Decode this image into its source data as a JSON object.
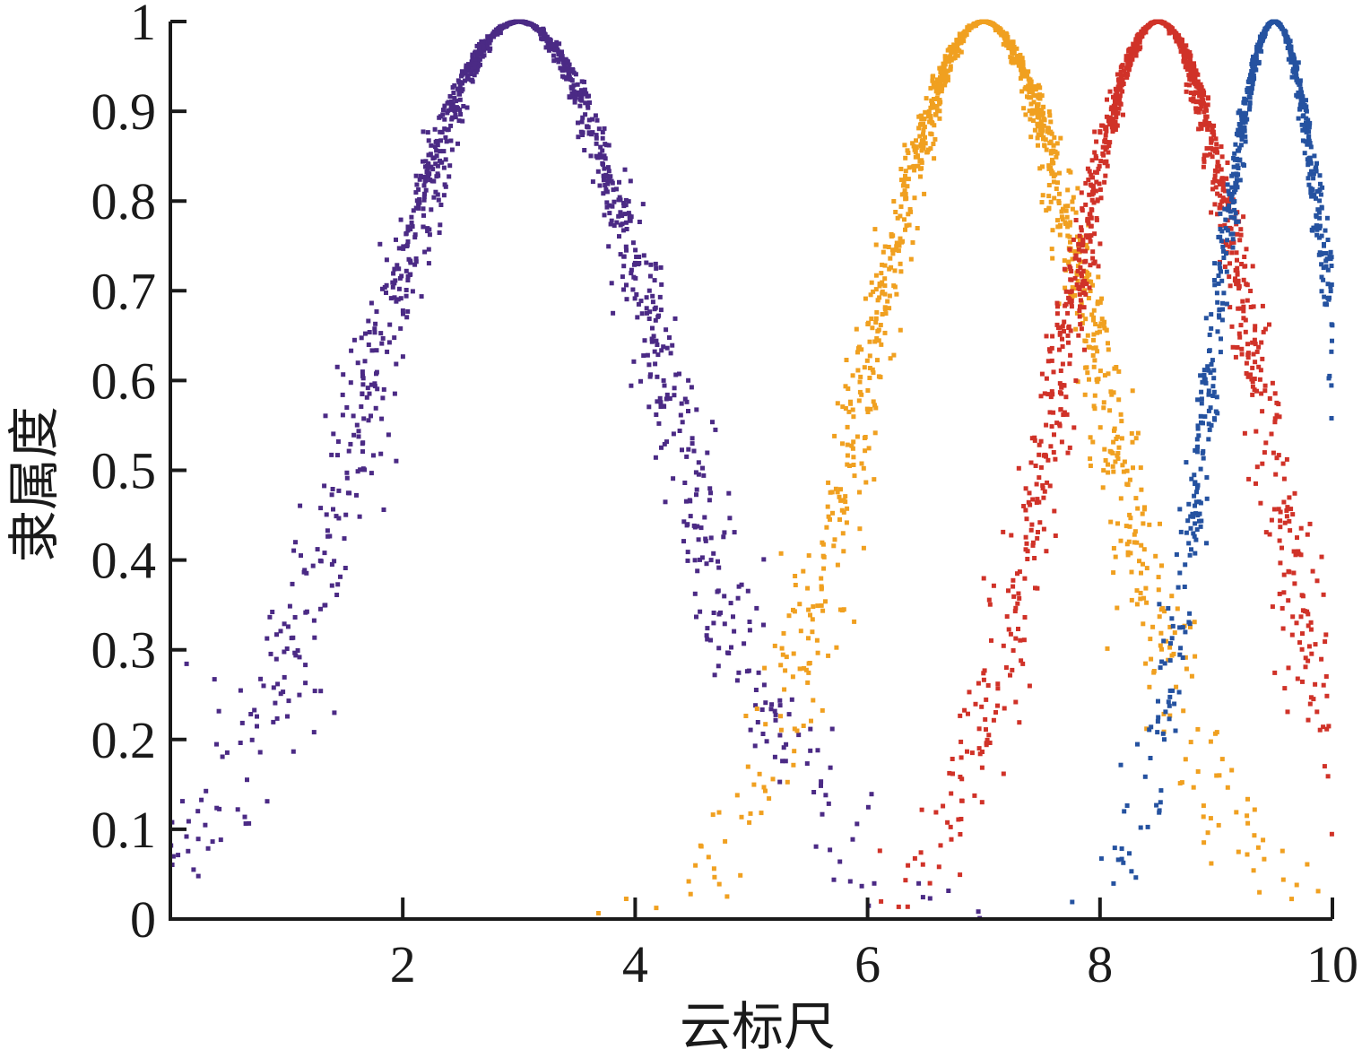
{
  "chart_data": {
    "type": "scatter",
    "title": "",
    "xlabel": "云标尺",
    "ylabel": "隶属度",
    "xlim": [
      0,
      10
    ],
    "ylim": [
      0,
      1
    ],
    "x_ticks": [
      {
        "value": 2,
        "label": "2"
      },
      {
        "value": 4,
        "label": "4"
      },
      {
        "value": 6,
        "label": "6"
      },
      {
        "value": 8,
        "label": "8"
      },
      {
        "value": 10,
        "label": "10"
      }
    ],
    "y_ticks": [
      {
        "value": 0,
        "label": "0"
      },
      {
        "value": 0.1,
        "label": "0.1"
      },
      {
        "value": 0.2,
        "label": "0.2"
      },
      {
        "value": 0.3,
        "label": "0.3"
      },
      {
        "value": 0.4,
        "label": "0.4"
      },
      {
        "value": 0.5,
        "label": "0.5"
      },
      {
        "value": 0.6,
        "label": "0.6"
      },
      {
        "value": 0.7,
        "label": "0.7"
      },
      {
        "value": 0.8,
        "label": "0.8"
      },
      {
        "value": 0.9,
        "label": "0.9"
      },
      {
        "value": 1,
        "label": "1"
      }
    ],
    "grid": false,
    "legend": "none",
    "series": [
      {
        "color": "#4b2a85",
        "Ex": 3.0,
        "En": 1.25,
        "He": 0.12,
        "drops": 1200,
        "seed": 11
      },
      {
        "color": "#f0a020",
        "Ex": 7.0,
        "En": 1.0,
        "He": 0.1,
        "drops": 1200,
        "seed": 23
      },
      {
        "color": "#d03228",
        "Ex": 8.5,
        "En": 0.85,
        "He": 0.08,
        "drops": 1200,
        "seed": 37
      },
      {
        "color": "#2552a0",
        "Ex": 9.5,
        "En": 0.55,
        "He": 0.05,
        "drops": 900,
        "seed": 51
      }
    ]
  }
}
